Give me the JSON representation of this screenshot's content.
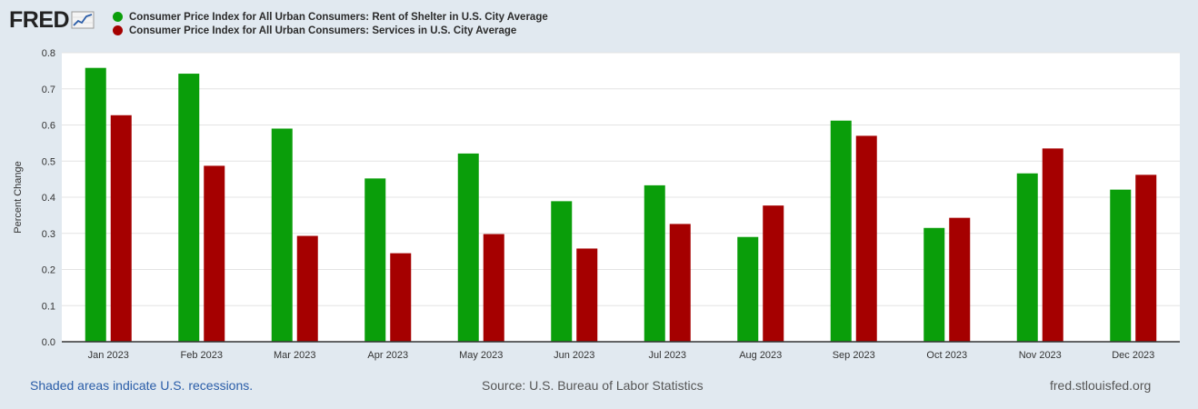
{
  "branding": {
    "logo_text": "FRED"
  },
  "chart_data": {
    "type": "bar",
    "title": "",
    "xlabel": "",
    "ylabel": "Percent Change",
    "ylim": [
      0,
      0.8
    ],
    "yticks": [
      "0.0",
      "0.1",
      "0.2",
      "0.3",
      "0.4",
      "0.5",
      "0.6",
      "0.7",
      "0.8"
    ],
    "categories": [
      "Jan 2023",
      "Feb 2023",
      "Mar 2023",
      "Apr 2023",
      "May 2023",
      "Jun 2023",
      "Jul 2023",
      "Aug 2023",
      "Sep 2023",
      "Oct 2023",
      "Nov 2023",
      "Dec 2023"
    ],
    "series": [
      {
        "name": "Consumer Price Index for All Urban Consumers: Rent of Shelter in U.S. City Average",
        "color": "#0a9e0a",
        "values": [
          0.758,
          0.742,
          0.59,
          0.452,
          0.521,
          0.389,
          0.433,
          0.29,
          0.612,
          0.315,
          0.466,
          0.421
        ]
      },
      {
        "name": "Consumer Price Index for All Urban Consumers: Services in U.S. City Average",
        "color": "#a50000",
        "values": [
          0.627,
          0.487,
          0.293,
          0.245,
          0.298,
          0.258,
          0.326,
          0.377,
          0.57,
          0.343,
          0.535,
          0.462
        ]
      }
    ],
    "grid": true,
    "legend_position": "top-left"
  },
  "footer": {
    "recessions_note": "Shaded areas indicate U.S. recessions.",
    "source": "Source: U.S. Bureau of Labor Statistics",
    "site": "fred.stlouisfed.org"
  }
}
